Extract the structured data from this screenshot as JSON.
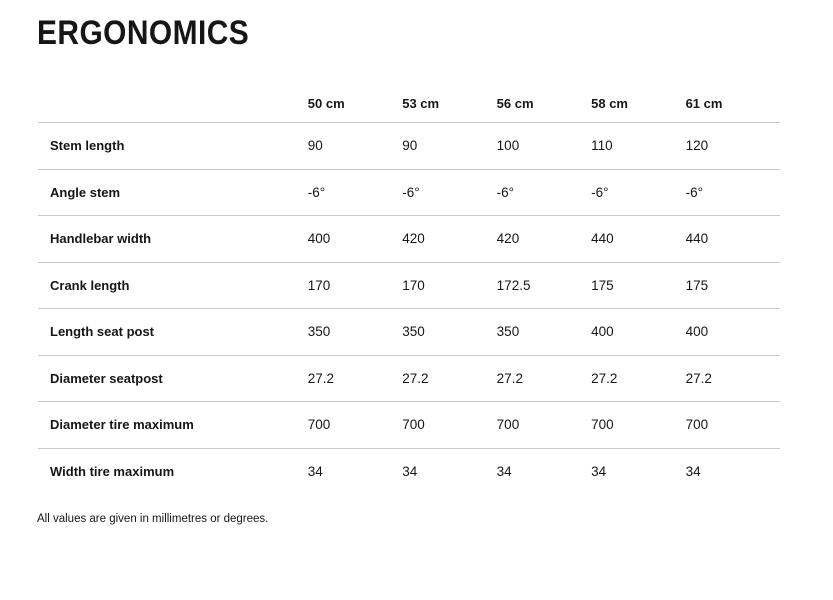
{
  "page": {
    "title": "ERGONOMICS",
    "footnote": "All values are given in millimetres or degrees."
  },
  "table": {
    "column_headers": [
      "50 cm",
      "53 cm",
      "56 cm",
      "58 cm",
      "61 cm"
    ],
    "rows": [
      {
        "label": "Stem length",
        "values": [
          "90",
          "90",
          "100",
          "110",
          "120"
        ]
      },
      {
        "label": "Angle stem",
        "values": [
          "-6°",
          "-6°",
          "-6°",
          "-6°",
          "-6°"
        ]
      },
      {
        "label": "Handlebar width",
        "values": [
          "400",
          "420",
          "420",
          "440",
          "440"
        ]
      },
      {
        "label": "Crank length",
        "values": [
          "170",
          "170",
          "172.5",
          "175",
          "175"
        ]
      },
      {
        "label": "Length seat post",
        "values": [
          "350",
          "350",
          "350",
          "400",
          "400"
        ]
      },
      {
        "label": "Diameter seatpost",
        "values": [
          "27.2",
          "27.2",
          "27.2",
          "27.2",
          "27.2"
        ]
      },
      {
        "label": "Diameter tire maximum",
        "values": [
          "700",
          "700",
          "700",
          "700",
          "700"
        ]
      },
      {
        "label": "Width tire maximum",
        "values": [
          "34",
          "34",
          "34",
          "34",
          "34"
        ]
      }
    ]
  },
  "colors": {
    "text": "#161616",
    "divider": "#c8c8c8"
  }
}
